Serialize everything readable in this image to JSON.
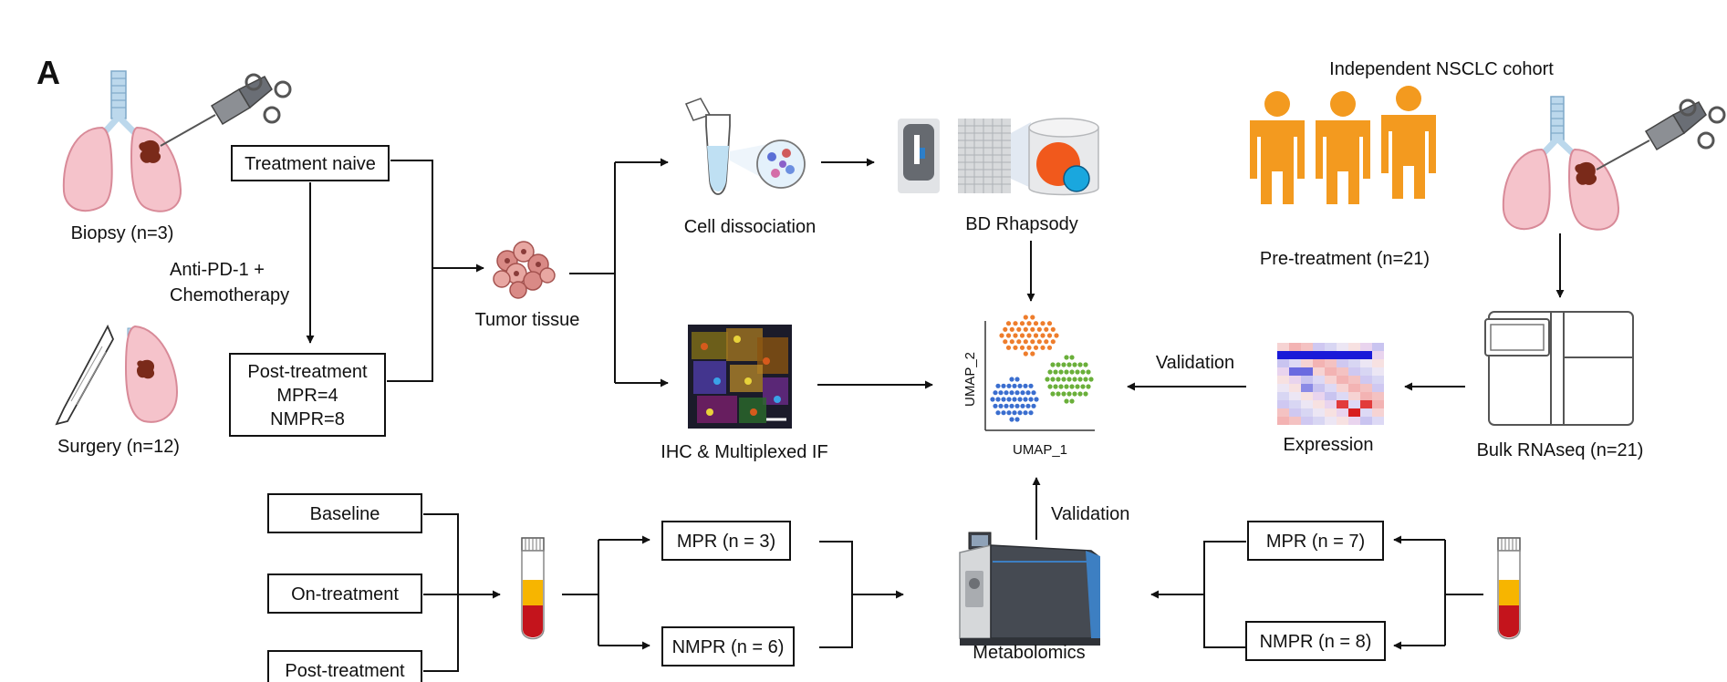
{
  "panel_label": "A",
  "cohort_title": "Independent NSCLC cohort",
  "labels": {
    "biopsy": "Biopsy (n=3)",
    "surgery": "Surgery (n=12)",
    "treatment_naive": "Treatment naive",
    "anti_pd1_line1": "Anti-PD-1 +",
    "anti_pd1_line2": "Chemotherapy",
    "post_treatment_line1": "Post-treatment",
    "post_treatment_line2": "MPR=4",
    "post_treatment_line3": "NMPR=8",
    "tumor_tissue": "Tumor tissue",
    "cell_dissociation": "Cell dissociation",
    "bd_rhapsody": "BD Rhapsody",
    "ihc": "IHC & Multiplexed IF",
    "umap_x": "UMAP_1",
    "umap_y": "UMAP_2",
    "validation_top": "Validation",
    "validation_bottom": "Validation",
    "expression": "Expression",
    "bulk_rnaseq": "Bulk RNAseq (n=21)",
    "pre_treatment": "Pre-treatment (n=21)",
    "baseline": "Baseline",
    "on_treatment": "On-treatment",
    "post_treatment_blood": "Post-treatment",
    "mpr_left": "MPR (n = 3)",
    "nmpr_left": "NMPR (n = 6)",
    "metabolomics": "Metabolomics",
    "mpr_right": "MPR (n = 7)",
    "nmpr_right": "NMPR (n = 8)"
  },
  "colors": {
    "lung": "#f5c3cb",
    "lung_stroke": "#d88a98",
    "trachea": "#bcd8ec",
    "tumor": "#7a2a1a",
    "person": "#f39a1f",
    "cluster_orange": "#ee7d2c",
    "cluster_green": "#6aaf3a",
    "cluster_blue": "#3a6ecf",
    "blood_red": "#c4141c",
    "blood_yellow": "#f7b500",
    "instrument_dark": "#454a52",
    "instrument_blue": "#3d7fc2"
  },
  "icons": [
    "lung-biopsy-icon",
    "lung-surgery-icon",
    "scalpel-icon",
    "syringe-icon",
    "tumor-cells-icon",
    "tube-icon",
    "bd-rhapsody-icon",
    "if-image-icon",
    "people-icon",
    "heatmap-icon",
    "sequencer-icon",
    "blood-tube-icon",
    "mass-spec-icon"
  ]
}
